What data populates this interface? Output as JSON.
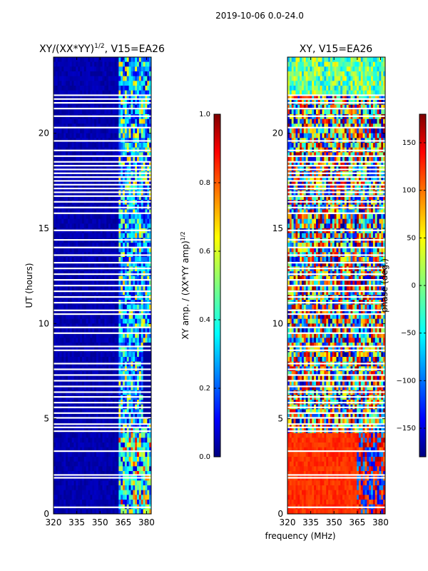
{
  "figure": {
    "suptitle": "2019-10-06 0.0-24.0",
    "shared_xlabel": "frequency (MHz)"
  },
  "chart_data": [
    {
      "type": "heatmap",
      "title": "XY/(XX*YY)",
      "title_exponent": "1/2",
      "title_suffix": ", V15=EA26",
      "xlabel": "",
      "ylabel": "UT (hours)",
      "xlim": [
        320,
        383
      ],
      "ylim": [
        0,
        24
      ],
      "xticks": [
        320,
        335,
        350,
        365,
        380
      ],
      "yticks": [
        0,
        5,
        10,
        15,
        20
      ],
      "grid": false,
      "colorbar": {
        "label": "XY amp. / (XX*YY amp)",
        "label_exponent": "1/2",
        "range": [
          0.0,
          1.0
        ],
        "ticks": [
          "0.0",
          "0.2",
          "0.4",
          "0.6",
          "0.8",
          "1.0"
        ],
        "tick_values": [
          0.0,
          0.2,
          0.4,
          0.6,
          0.8,
          1.0
        ],
        "colormap": "jet"
      }
    },
    {
      "type": "heatmap",
      "title": "XY, V15=EA26",
      "xlabel": "frequency (MHz)",
      "ylabel": "",
      "xlim": [
        320,
        383
      ],
      "ylim": [
        0,
        24
      ],
      "xticks": [
        320,
        335,
        350,
        365,
        380
      ],
      "yticks": [
        0,
        5,
        10,
        15,
        20
      ],
      "grid": false,
      "colorbar": {
        "label": "phase (deg.)",
        "range": [
          -180,
          180
        ],
        "ticks": [
          "150",
          "100",
          "50",
          "0",
          "−50",
          "−100",
          "−150"
        ],
        "tick_values": [
          150,
          100,
          50,
          0,
          -50,
          -100,
          -150
        ],
        "colormap": "jet"
      }
    }
  ],
  "colors": {
    "jet": [
      "#00007f",
      "#0000ff",
      "#007fff",
      "#00ffff",
      "#7fff7f",
      "#ffff00",
      "#ff7f00",
      "#ff0000",
      "#7f0000"
    ],
    "gap": "#ffffff",
    "axis": "#000000"
  }
}
